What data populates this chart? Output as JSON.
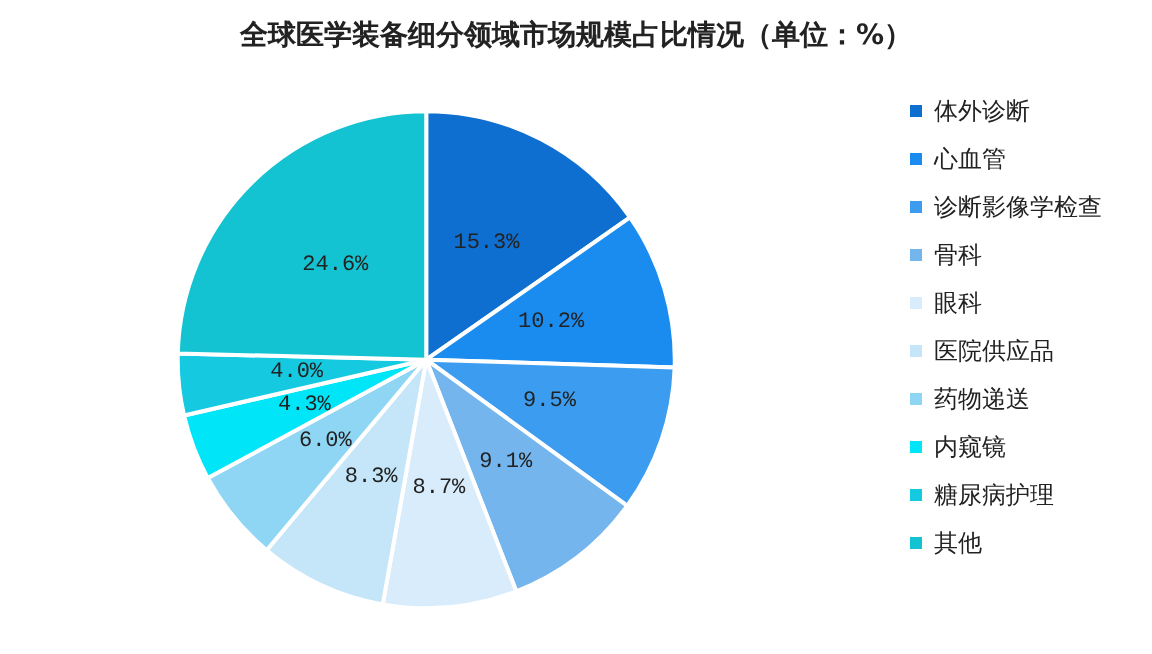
{
  "chart_data": {
    "type": "pie",
    "title": "全球医学装备细分领域市场规模占比情况（单位：%）",
    "categories": [
      "体外诊断",
      "心血管",
      "诊断影像学检查",
      "骨科",
      "眼科",
      "医院供应品",
      "药物递送",
      "内窥镜",
      "糖尿病护理",
      "其他"
    ],
    "values": [
      15.3,
      10.2,
      9.5,
      9.1,
      8.7,
      8.3,
      6.0,
      4.3,
      4.0,
      24.6
    ],
    "value_labels": [
      "15.3%",
      "10.2%",
      "9.5%",
      "9.1%",
      "8.7%",
      "8.3%",
      "6.0%",
      "4.3%",
      "4.0%",
      "24.6%"
    ],
    "colors": [
      "#0f6fd0",
      "#1a8cf0",
      "#3c9df0",
      "#74b5ee",
      "#d8ecfb",
      "#c4e6f8",
      "#8fd6f5",
      "#00e6f8",
      "#14c9e0",
      "#14c3d2"
    ],
    "legend": "right"
  }
}
